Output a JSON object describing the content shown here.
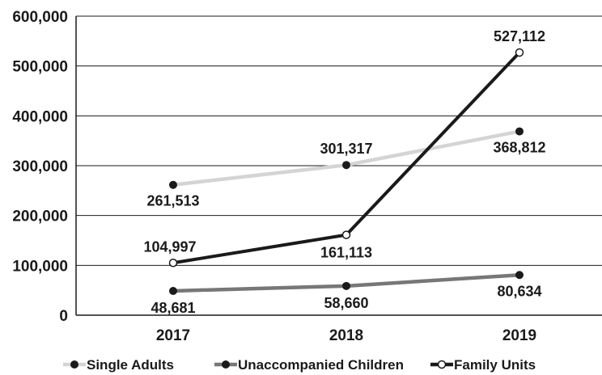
{
  "chart_data": {
    "type": "line",
    "categories": [
      "2017",
      "2018",
      "2019"
    ],
    "series": [
      {
        "name": "Single Adults",
        "values": [
          261513,
          301317,
          368812
        ],
        "line_color": "#d4d4d4",
        "marker": "filled",
        "marker_color": "#1a1a1a"
      },
      {
        "name": "Unaccompanied Children",
        "values": [
          48681,
          58660,
          80634
        ],
        "line_color": "#777777",
        "marker": "filled",
        "marker_color": "#1a1a1a"
      },
      {
        "name": "Family Units",
        "values": [
          104997,
          161113,
          527112
        ],
        "line_color": "#1a1a1a",
        "marker": "hollow",
        "marker_color": "#ffffff"
      }
    ],
    "data_labels": [
      [
        "261,513",
        "301,317",
        "368,812"
      ],
      [
        "48,681",
        "58,660",
        "80,634"
      ],
      [
        "104,997",
        "161,113",
        "527,112"
      ]
    ],
    "y_ticks": [
      "0",
      "100,000",
      "200,000",
      "300,000",
      "400,000",
      "500,000",
      "600,000"
    ],
    "ylim": [
      0,
      600000
    ],
    "grid": true,
    "legend_position": "bottom",
    "title": "",
    "xlabel": "",
    "ylabel": ""
  }
}
